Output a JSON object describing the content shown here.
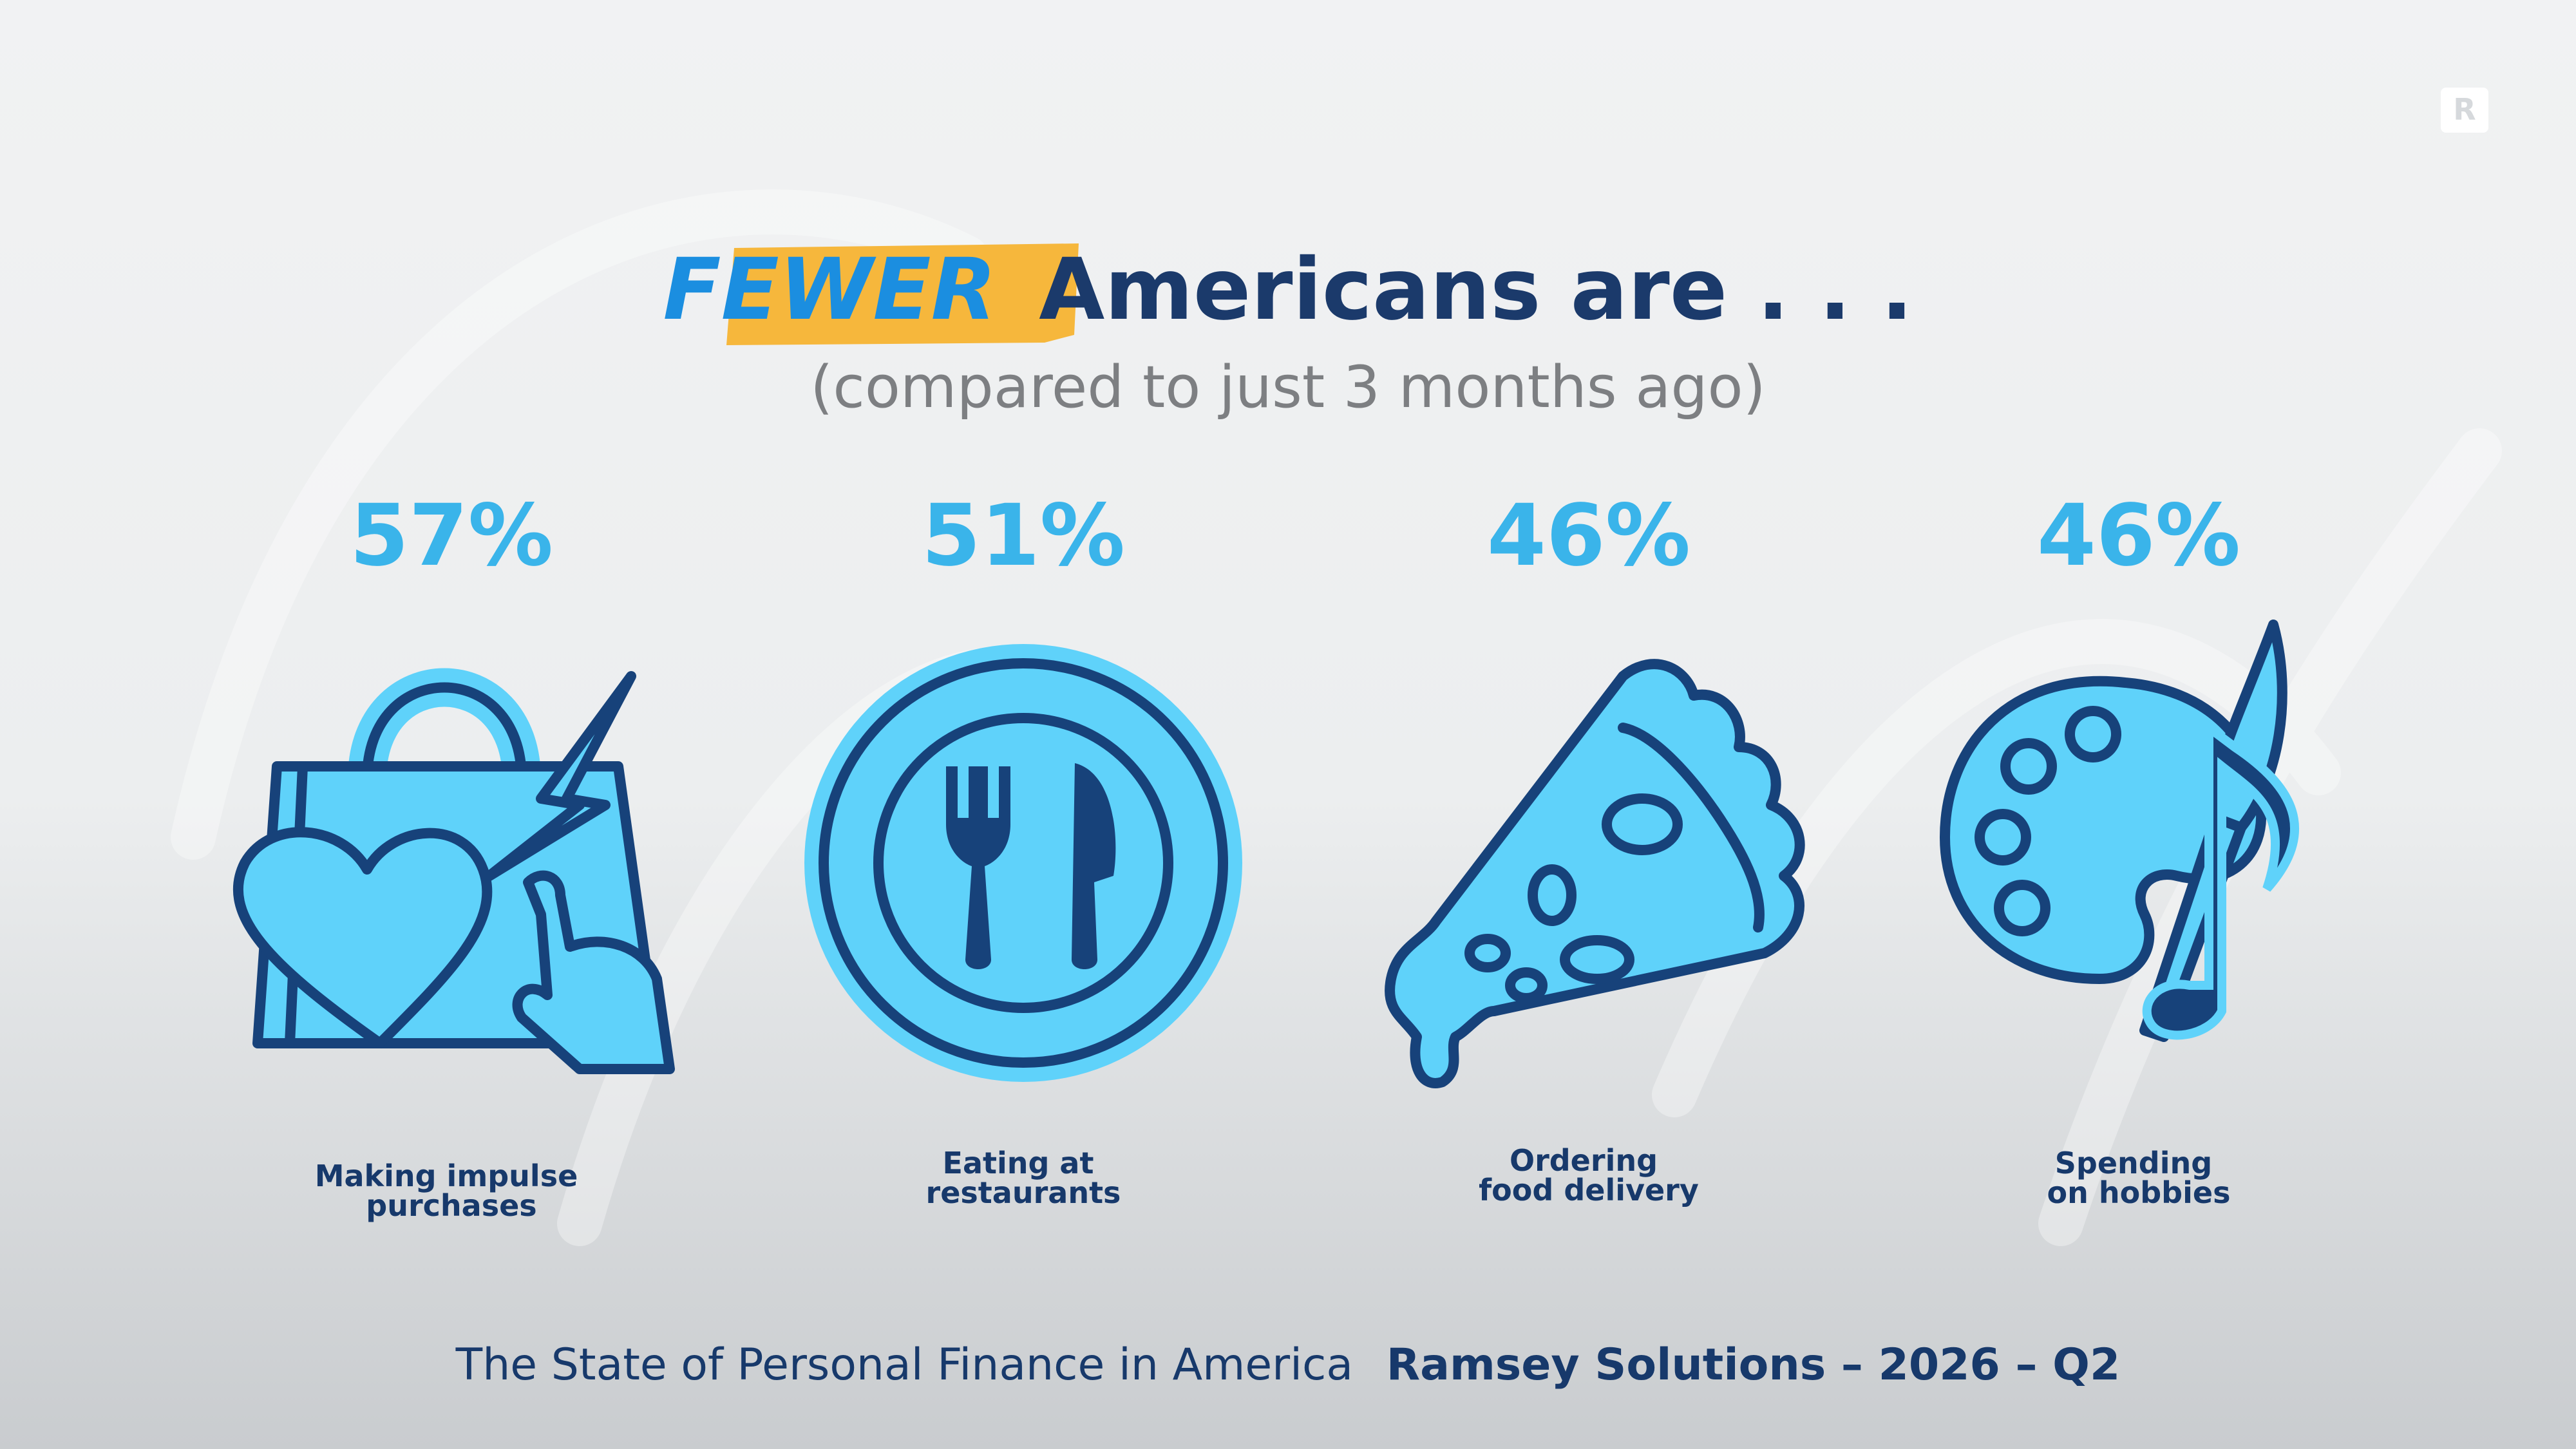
{
  "logo": "R",
  "header": {
    "highlight": "FEWER",
    "title": "Americans are . . .",
    "subtitle": "(compared to just 3 months ago)"
  },
  "items": [
    {
      "value": "57%",
      "label": [
        "Making impulse",
        "purchases"
      ]
    },
    {
      "value": "51%",
      "label": [
        "Eating at",
        "restaurants"
      ]
    },
    {
      "value": "46%",
      "label": [
        "Ordering",
        "food delivery"
      ]
    },
    {
      "value": "46%",
      "label": [
        "Spending",
        "on hobbies"
      ]
    }
  ],
  "footer": {
    "source": "The State of Personal Finance in America",
    "brand": "Ramsey Solutions – 2026 – Q2"
  }
}
